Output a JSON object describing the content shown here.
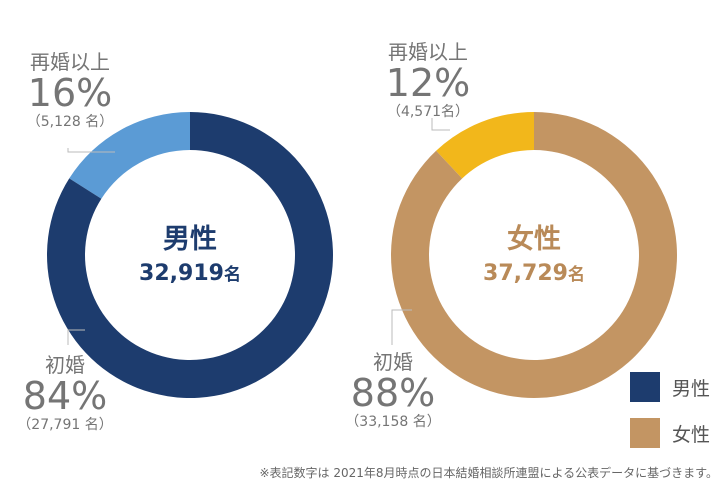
{
  "chart_data": [
    {
      "type": "donut",
      "center_title": "男性",
      "center_total": "32,919",
      "center_unit": "名",
      "slices": [
        {
          "label": "再婚以上",
          "percent": 16,
          "percent_text": "16%",
          "count_text": "（5,128 名）",
          "color": "#5B9BD5"
        },
        {
          "label": "初婚",
          "percent": 84,
          "percent_text": "84%",
          "count_text": "（27,791 名）",
          "color": "#1D3C6E"
        }
      ]
    },
    {
      "type": "donut",
      "center_title": "女性",
      "center_total": "37,729",
      "center_unit": "名",
      "slices": [
        {
          "label": "再婚以上",
          "percent": 12,
          "percent_text": "12%",
          "count_text": "（4,571名）",
          "color": "#F2B71B"
        },
        {
          "label": "初婚",
          "percent": 88,
          "percent_text": "88%",
          "count_text": "（33,158 名）",
          "color": "#C39563"
        }
      ]
    }
  ],
  "legend": [
    {
      "label": "男性",
      "color": "#1D3C6E"
    },
    {
      "label": "女性",
      "color": "#C39563"
    }
  ],
  "colors": {
    "male_text": "#1D3C6E",
    "female_text": "#B98A58"
  },
  "footnote": "※表記数字は 2021年8月時点の日本結婚相談所連盟による公表データに基づきます。"
}
